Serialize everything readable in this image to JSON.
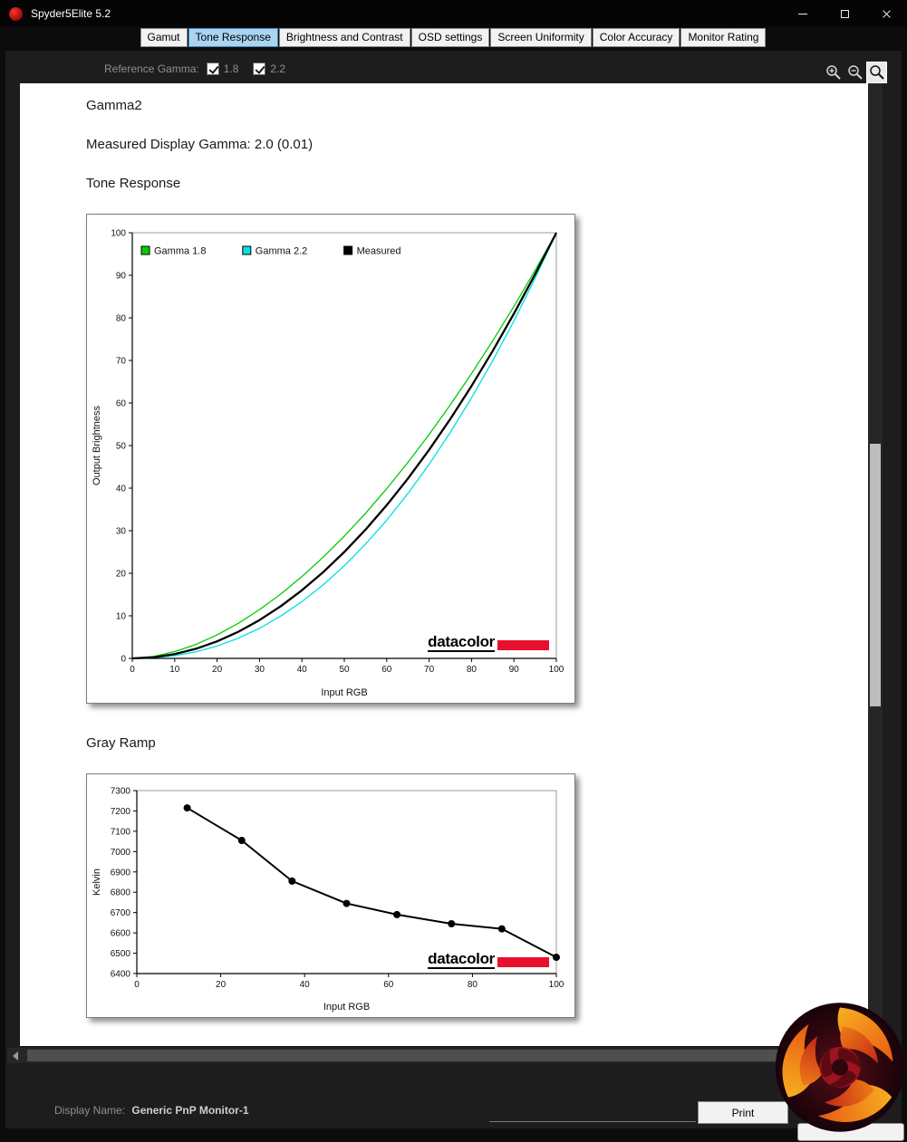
{
  "window": {
    "title": "Spyder5Elite 5.2"
  },
  "tabs": [
    {
      "label": "Gamut"
    },
    {
      "label": "Tone Response"
    },
    {
      "label": "Brightness and Contrast"
    },
    {
      "label": "OSD settings"
    },
    {
      "label": "Screen Uniformity"
    },
    {
      "label": "Color Accuracy"
    },
    {
      "label": "Monitor Rating"
    }
  ],
  "toolbar": {
    "reference_gamma_label": "Reference Gamma:",
    "checkboxes": [
      {
        "label": "1.8",
        "checked": true
      },
      {
        "label": "2.2",
        "checked": true
      }
    ]
  },
  "content": {
    "gamma_heading": "Gamma2",
    "measured_gamma": "Measured Display Gamma: 2.0 (0.01)",
    "tone_response_heading": "Tone Response",
    "gray_ramp_heading": "Gray Ramp"
  },
  "branding": {
    "datacolor": "datacolor",
    "datacolor_red": "#e8112d"
  },
  "footer": {
    "display_name_label": "Display Name:",
    "display_name_value": "Generic PnP Monitor-1",
    "print_label": "Print"
  },
  "colors": {
    "active_tab": "#a9d4f2",
    "gamma18": "#00cc00",
    "gamma22": "#00e0e0",
    "measured": "#000000"
  },
  "chart_data": [
    {
      "type": "line",
      "title": "Tone Response",
      "xlabel": "Input RGB",
      "ylabel": "Output Brightness",
      "xlim": [
        0,
        100
      ],
      "ylim": [
        0,
        100
      ],
      "xticks": [
        0,
        10,
        20,
        30,
        40,
        50,
        60,
        70,
        80,
        90,
        100
      ],
      "yticks": [
        0,
        10,
        20,
        30,
        40,
        50,
        60,
        70,
        80,
        90,
        100
      ],
      "grid": false,
      "legend_position": "top-left-inside",
      "x": [
        0,
        5,
        10,
        15,
        20,
        25,
        30,
        35,
        40,
        45,
        50,
        55,
        60,
        65,
        70,
        75,
        80,
        85,
        90,
        95,
        100
      ],
      "series": [
        {
          "name": "Gamma 1.8",
          "color": "#00cc00",
          "width": 1.3,
          "markers": false,
          "values": [
            0,
            0.45,
            1.59,
            3.28,
            5.52,
            8.24,
            11.46,
            15.11,
            19.22,
            23.76,
            28.72,
            34.09,
            39.87,
            46.05,
            52.6,
            59.58,
            66.9,
            74.64,
            82.7,
            91.18,
            100
          ]
        },
        {
          "name": "Gamma 2.2",
          "color": "#00e0e0",
          "width": 1.3,
          "markers": false,
          "values": [
            0,
            0.14,
            0.63,
            1.54,
            2.91,
            4.74,
            7.07,
            9.93,
            13.33,
            17.26,
            21.76,
            26.84,
            32.45,
            38.76,
            45.6,
            53.11,
            61.21,
            69.94,
            79.3,
            89.32,
            100
          ]
        },
        {
          "name": "Measured",
          "color": "#000000",
          "width": 2.3,
          "markers": false,
          "values": [
            0,
            0.25,
            1,
            2.25,
            4,
            6.25,
            9,
            12.25,
            16,
            20.25,
            25,
            30.25,
            36,
            42.25,
            49,
            56.25,
            64,
            72.25,
            81,
            90.25,
            100
          ]
        }
      ]
    },
    {
      "type": "line",
      "title": "Gray Ramp",
      "xlabel": "Input RGB",
      "ylabel": "Kelvin",
      "xlim": [
        0,
        100
      ],
      "ylim": [
        6400,
        7300
      ],
      "xticks": [
        0,
        20,
        40,
        60,
        80,
        100
      ],
      "yticks": [
        6400,
        6500,
        6600,
        6700,
        6800,
        6900,
        7000,
        7100,
        7200,
        7300
      ],
      "grid": false,
      "x": [
        12,
        25,
        37,
        50,
        62,
        75,
        87,
        100
      ],
      "series": [
        {
          "name": "Kelvin",
          "color": "#000000",
          "width": 2,
          "markers": true,
          "values": [
            7215,
            7055,
            6855,
            6745,
            6690,
            6645,
            6620,
            6480
          ]
        }
      ]
    }
  ]
}
